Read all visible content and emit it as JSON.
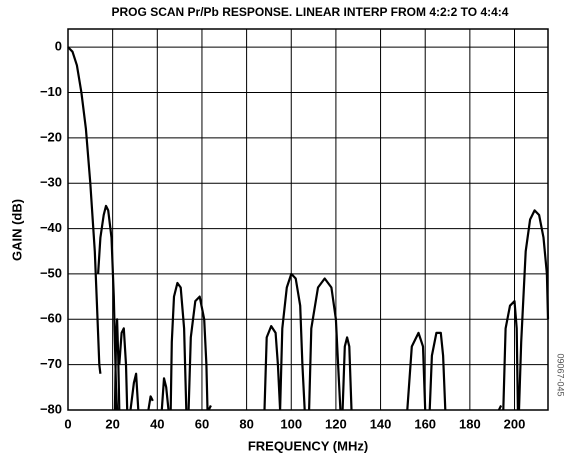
{
  "chart_data": {
    "type": "line",
    "title": "PROG SCAN Pr/Pb RESPONSE. LINEAR INTERP FROM 4:2:2 TO 4:4:4",
    "xlabel": "FREQUENCY (MHz)",
    "ylabel": "GAIN (dB)",
    "annotation": "09067-045",
    "color": "#000000",
    "grid": true,
    "xlim": [
      0,
      215
    ],
    "ylim": [
      -80,
      4
    ],
    "xticks": [
      0,
      20,
      40,
      60,
      80,
      100,
      120,
      140,
      160,
      180,
      200
    ],
    "yticks": [
      0,
      {
        "value": -10,
        "label": "−10"
      },
      {
        "value": -20,
        "label": "−20"
      },
      {
        "value": -30,
        "label": "−30"
      },
      {
        "value": -40,
        "label": "−40"
      },
      {
        "value": -50,
        "label": "−50"
      },
      {
        "value": -60,
        "label": "−60"
      },
      {
        "value": -70,
        "label": "−70"
      },
      {
        "value": -80,
        "label": "−80"
      }
    ],
    "x": [
      0,
      2,
      4,
      6,
      8,
      10,
      12,
      13,
      14,
      14.5,
      null,
      13.5,
      14.5,
      16,
      17,
      18,
      19.5,
      20.5,
      21.5,
      22,
      null,
      21,
      21.5,
      22,
      22.5,
      23,
      null,
      23,
      24,
      25,
      26,
      26.5,
      null,
      28,
      29.5,
      30.5,
      31.5,
      null,
      36,
      37,
      38,
      null,
      42,
      43,
      44,
      45,
      null,
      46,
      46.5,
      47.5,
      49,
      50.5,
      52,
      53,
      null,
      54,
      55,
      57,
      59,
      61,
      62,
      62.5,
      null,
      63,
      64,
      null,
      88,
      89,
      91,
      93,
      94,
      95,
      null,
      95,
      96,
      98,
      100,
      102,
      104,
      105,
      106,
      null,
      108,
      109,
      112,
      115,
      118,
      120,
      121,
      122,
      null,
      123,
      124,
      125,
      126,
      127,
      null,
      152,
      154,
      157,
      159,
      160,
      null,
      162,
      163,
      165,
      167,
      168,
      169,
      null,
      193,
      194,
      null,
      195,
      196,
      198,
      200,
      201,
      201.5,
      null,
      202,
      203,
      205,
      207,
      209,
      211,
      213,
      214.5,
      215
    ],
    "values": [
      0,
      -1,
      -4,
      -10,
      -18,
      -30,
      -45,
      -57,
      -70,
      -72,
      null,
      -50,
      -42,
      -37,
      -35,
      -36,
      -42,
      -55,
      -75,
      -80,
      null,
      -80,
      -65,
      -60,
      -68,
      -80,
      null,
      -70,
      -63,
      -62,
      -70,
      -80,
      null,
      -80,
      -74,
      -72,
      -80,
      null,
      -80,
      -77,
      -78,
      null,
      -80,
      -73,
      -75,
      -80,
      null,
      -80,
      -65,
      -55,
      -52,
      -53,
      -62,
      -80,
      null,
      -80,
      -64,
      -56,
      -55,
      -60,
      -70,
      -80,
      null,
      -80,
      -79,
      null,
      -80,
      -64,
      -61.5,
      -63,
      -70,
      -80,
      null,
      -80,
      -62,
      -53,
      -50,
      -51,
      -57,
      -70,
      -80,
      null,
      -80,
      -62,
      -53,
      -51,
      -53,
      -60,
      -70,
      -80,
      null,
      -80,
      -66,
      -64,
      -66,
      -80,
      null,
      -80,
      -66,
      -63,
      -66,
      -80,
      null,
      -80,
      -68,
      -63,
      -63,
      -68,
      -80,
      null,
      -80,
      -79,
      null,
      -80,
      -62,
      -57,
      -56,
      -62,
      -80,
      null,
      -80,
      -65,
      -45,
      -38,
      -36,
      -37,
      -42,
      -50,
      -60
    ]
  }
}
